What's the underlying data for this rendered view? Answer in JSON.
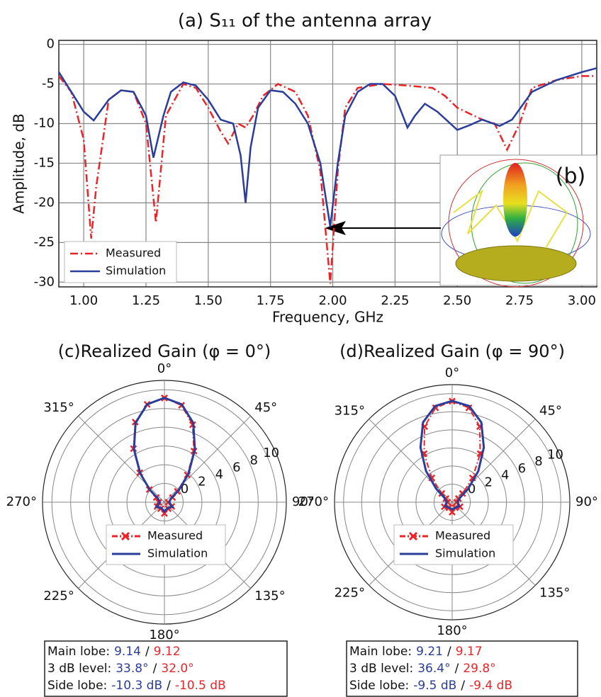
{
  "chart_data": [
    {
      "type": "line",
      "title": "(a) S₁₁ of the antenna array",
      "xlabel": "Frequency, GHz",
      "ylabel": "Amplitude, dB",
      "xlim": [
        0.9,
        3.06
      ],
      "ylim": [
        -30.6,
        0.5
      ],
      "xticks": [
        {
          "value": 1,
          "label": "1.00"
        },
        {
          "value": 1.25,
          "label": "1.25"
        },
        {
          "value": 1.5,
          "label": "1.50"
        },
        {
          "value": 1.75,
          "label": "1.75"
        },
        {
          "value": 2,
          "label": "2.00"
        },
        {
          "value": 2.25,
          "label": "2.25"
        },
        {
          "value": 2.5,
          "label": "2.50"
        },
        {
          "value": 2.75,
          "label": "2.75"
        },
        {
          "value": 3,
          "label": "3.00"
        }
      ],
      "yticks": [
        0,
        -5,
        -10,
        -15,
        -20,
        -25,
        -30
      ],
      "grid": true,
      "legend": "lower left",
      "inset_label": "(b)",
      "series": [
        {
          "name": "Measured",
          "color": "#e8262a",
          "linestyle": "dashdot",
          "x": [
            0.9,
            0.95,
            1.0,
            1.03,
            1.05,
            1.1,
            1.15,
            1.2,
            1.25,
            1.29,
            1.33,
            1.4,
            1.45,
            1.5,
            1.55,
            1.58,
            1.62,
            1.65,
            1.68,
            1.72,
            1.78,
            1.85,
            1.9,
            1.95,
            1.99,
            2.02,
            2.05,
            2.1,
            2.2,
            2.3,
            2.4,
            2.45,
            2.5,
            2.6,
            2.65,
            2.7,
            2.75,
            2.8,
            2.9,
            3.0,
            3.06
          ],
          "values": [
            -4,
            -6,
            -12,
            -24.5,
            -18,
            -7,
            -5.8,
            -6,
            -10,
            -22.5,
            -9,
            -5,
            -5.5,
            -8,
            -11,
            -12.5,
            -10,
            -10.5,
            -9,
            -6.5,
            -5,
            -6,
            -9,
            -16,
            -30.2,
            -16,
            -8,
            -5.5,
            -5,
            -5.2,
            -5.5,
            -6.5,
            -8,
            -9.5,
            -10,
            -13.3,
            -10,
            -5.5,
            -4.5,
            -4,
            -4
          ]
        },
        {
          "name": "Simulation",
          "color": "#2a3d9a",
          "linestyle": "solid",
          "x": [
            0.9,
            0.95,
            1.0,
            1.04,
            1.1,
            1.15,
            1.2,
            1.25,
            1.28,
            1.32,
            1.35,
            1.4,
            1.45,
            1.5,
            1.55,
            1.6,
            1.63,
            1.65,
            1.67,
            1.7,
            1.75,
            1.8,
            1.85,
            1.9,
            1.95,
            1.99,
            2.02,
            2.05,
            2.1,
            2.15,
            2.2,
            2.25,
            2.3,
            2.33,
            2.37,
            2.42,
            2.5,
            2.55,
            2.6,
            2.67,
            2.72,
            2.8,
            2.9,
            3.0,
            3.06
          ],
          "values": [
            -3.5,
            -6,
            -8.5,
            -9.6,
            -7,
            -5.8,
            -6,
            -9,
            -14.3,
            -9,
            -6,
            -4.8,
            -5.2,
            -7,
            -9.5,
            -10,
            -14,
            -20,
            -13,
            -8,
            -5.8,
            -6,
            -7.5,
            -10,
            -15,
            -23,
            -15,
            -9,
            -6,
            -5,
            -5,
            -6.5,
            -10.5,
            -9,
            -7.5,
            -8.5,
            -10.8,
            -10.2,
            -9.5,
            -10.3,
            -9.5,
            -6,
            -4.5,
            -3.5,
            -3
          ]
        }
      ]
    },
    {
      "type": "polar",
      "title": "(c)Realized Gain (φ = 0°)",
      "rlim": [
        -2,
        11
      ],
      "rticks": [
        0,
        2,
        4,
        6,
        8,
        10
      ],
      "thetaticks": [
        {
          "value": 0,
          "label": "0°"
        },
        {
          "value": 45,
          "label": "45°"
        },
        {
          "value": 90,
          "label": "90°"
        },
        {
          "value": 135,
          "label": "135°"
        },
        {
          "value": 180,
          "label": "180°"
        },
        {
          "value": 225,
          "label": "225°"
        },
        {
          "value": 270,
          "label": "270°"
        },
        {
          "value": 315,
          "label": "315°"
        }
      ],
      "theta": [
        0,
        10,
        20,
        30,
        40,
        50,
        60,
        90,
        120,
        150,
        180,
        210,
        240,
        270,
        300,
        310,
        320,
        330,
        340,
        350,
        360
      ],
      "series": [
        {
          "name": "Measured",
          "color": "#e8262a",
          "marker": "x",
          "values": [
            9.12,
            8.5,
            6.8,
            4.3,
            1.8,
            -0.2,
            -1.0,
            -1.6,
            -1.1,
            -1.2,
            -0.8,
            -1.2,
            -1.1,
            -1.4,
            -1.0,
            0.1,
            2.1,
            4.6,
            7.1,
            8.6,
            9.12
          ]
        },
        {
          "name": "Simulation",
          "color": "#2a3d9a",
          "values": [
            9.14,
            8.6,
            7.0,
            4.5,
            2.0,
            0,
            -1.2,
            -1.5,
            -1.0,
            -1.3,
            -1.0,
            -1.3,
            -1.0,
            -1.5,
            -1.2,
            0,
            2.0,
            4.5,
            7.0,
            8.6,
            9.14
          ]
        }
      ],
      "summary": {
        "separator": "/",
        "rows": [
          [
            "Main lobe:",
            "9.14",
            "9.12"
          ],
          [
            "3 dB level:",
            "33.8°",
            "32.0°"
          ],
          [
            "Side lobe:",
            "-10.3 dB",
            "-10.5 dB"
          ]
        ]
      }
    },
    {
      "type": "polar",
      "title": "(d)Realized Gain (φ = 90°)",
      "rlim": [
        -2,
        11
      ],
      "rticks": [
        0,
        2,
        4,
        6,
        8,
        10
      ],
      "thetaticks": [
        {
          "value": 0,
          "label": "0°"
        },
        {
          "value": 45,
          "label": "45°"
        },
        {
          "value": 90,
          "label": "90°"
        },
        {
          "value": 135,
          "label": "135°"
        },
        {
          "value": 180,
          "label": "180°"
        },
        {
          "value": 225,
          "label": "225°"
        },
        {
          "value": 270,
          "label": "270°"
        },
        {
          "value": 315,
          "label": "315°"
        }
      ],
      "theta": [
        0,
        10,
        20,
        30,
        40,
        50,
        60,
        90,
        120,
        150,
        180,
        210,
        240,
        270,
        300,
        310,
        320,
        330,
        340,
        350,
        360
      ],
      "series": [
        {
          "name": "Measured",
          "color": "#e8262a",
          "marker": "x",
          "values": [
            9.17,
            8.6,
            6.9,
            4.2,
            1.5,
            -0.5,
            -1.2,
            -1.5,
            -1.0,
            -1.3,
            -0.9,
            -1.3,
            -1.0,
            -1.5,
            -1.2,
            -0.5,
            1.5,
            4.2,
            6.9,
            8.6,
            9.17
          ]
        },
        {
          "name": "Simulation",
          "color": "#2a3d9a",
          "values": [
            9.21,
            8.8,
            7.4,
            5.0,
            2.5,
            0.3,
            -1.0,
            -1.4,
            -1.1,
            -1.3,
            -1.2,
            -1.3,
            -1.1,
            -1.4,
            -1.0,
            0.3,
            2.5,
            5.0,
            7.4,
            8.8,
            9.21
          ]
        }
      ],
      "summary": {
        "separator": "/",
        "rows": [
          [
            "Main lobe:",
            "9.21",
            "9.17"
          ],
          [
            "3 dB level:",
            "36.4°",
            "29.8°"
          ],
          [
            "Side lobe:",
            "-9.5 dB",
            "-9.4 dB"
          ]
        ]
      }
    }
  ]
}
